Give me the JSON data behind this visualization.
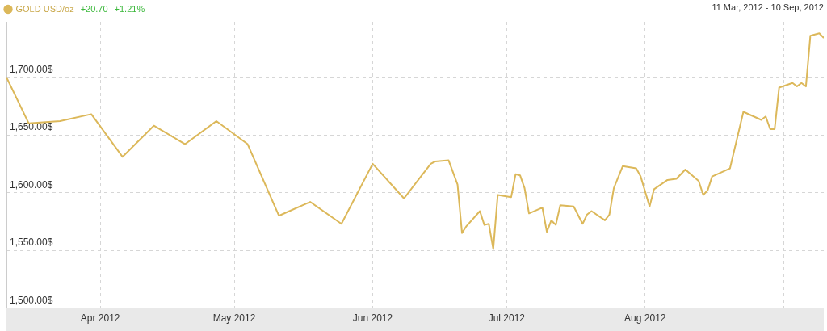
{
  "chart_data": {
    "type": "line",
    "subtitle": "11 Mar, 2012 - 10 Sep, 2012",
    "annotations": [
      "+20.70",
      "+1.21%"
    ],
    "series": [
      {
        "name": "GOLD USD/oz",
        "color": "#dcb85a",
        "x": [
          "2012-03-11",
          "2012-03-16",
          "2012-03-23",
          "2012-03-30",
          "2012-04-06",
          "2012-04-13",
          "2012-04-20",
          "2012-04-27",
          "2012-05-04",
          "2012-05-11",
          "2012-05-18",
          "2012-05-25",
          "2012-06-01",
          "2012-06-08",
          "2012-06-14",
          "2012-06-15",
          "2012-06-18",
          "2012-06-20",
          "2012-06-21",
          "2012-06-22",
          "2012-06-25",
          "2012-06-26",
          "2012-06-27",
          "2012-06-28",
          "2012-06-29",
          "2012-07-02",
          "2012-07-03",
          "2012-07-04",
          "2012-07-05",
          "2012-07-06",
          "2012-07-09",
          "2012-07-10",
          "2012-07-11",
          "2012-07-12",
          "2012-07-13",
          "2012-07-16",
          "2012-07-18",
          "2012-07-19",
          "2012-07-20",
          "2012-07-23",
          "2012-07-24",
          "2012-07-25",
          "2012-07-27",
          "2012-07-30",
          "2012-07-31",
          "2012-08-02",
          "2012-08-03",
          "2012-08-06",
          "2012-08-08",
          "2012-08-10",
          "2012-08-13",
          "2012-08-14",
          "2012-08-15",
          "2012-08-16",
          "2012-08-20",
          "2012-08-23",
          "2012-08-27",
          "2012-08-28",
          "2012-08-29",
          "2012-08-30",
          "2012-08-31",
          "2012-09-03",
          "2012-09-04",
          "2012-09-05",
          "2012-09-06",
          "2012-09-07",
          "2012-09-09",
          "2012-09-10"
        ],
        "values": [
          1700,
          1660,
          1662,
          1668,
          1631,
          1658,
          1642,
          1662,
          1642,
          1580,
          1592,
          1573,
          1625,
          1595,
          1625,
          1627,
          1628,
          1607,
          1565,
          1571,
          1584,
          1572,
          1573,
          1551,
          1598,
          1596,
          1616,
          1615,
          1604,
          1582,
          1587,
          1566,
          1576,
          1572,
          1589,
          1588,
          1573,
          1581,
          1584,
          1576,
          1581,
          1604,
          1623,
          1621,
          1614,
          1588,
          1603,
          1611,
          1612,
          1620,
          1610,
          1598,
          1602,
          1614,
          1621,
          1670,
          1663,
          1666,
          1655,
          1655,
          1691,
          1695,
          1692,
          1695,
          1692,
          1736,
          1738,
          1734
        ]
      }
    ],
    "xlim": [
      "2012-03-11",
      "2012-09-10"
    ],
    "xticks": [
      {
        "value": "2012-04-01",
        "label": "Apr 2012"
      },
      {
        "value": "2012-05-01",
        "label": "May 2012"
      },
      {
        "value": "2012-06-01",
        "label": "Jun 2012"
      },
      {
        "value": "2012-07-01",
        "label": "Jul 2012"
      },
      {
        "value": "2012-08-01",
        "label": "Aug 2012"
      },
      {
        "value": "2012-09-01",
        "label": null
      }
    ],
    "ylim": [
      1500,
      1748
    ],
    "yticks": [
      {
        "value": 1500,
        "label": "1,500.00$"
      },
      {
        "value": 1550,
        "label": "1,550.00$"
      },
      {
        "value": 1600,
        "label": "1,600.00$"
      },
      {
        "value": 1650,
        "label": "1,650.00$"
      },
      {
        "value": 1700,
        "label": "1,700.00$"
      }
    ],
    "grid": true,
    "legend": "top left",
    "marker": "none",
    "line_style": "solid"
  }
}
